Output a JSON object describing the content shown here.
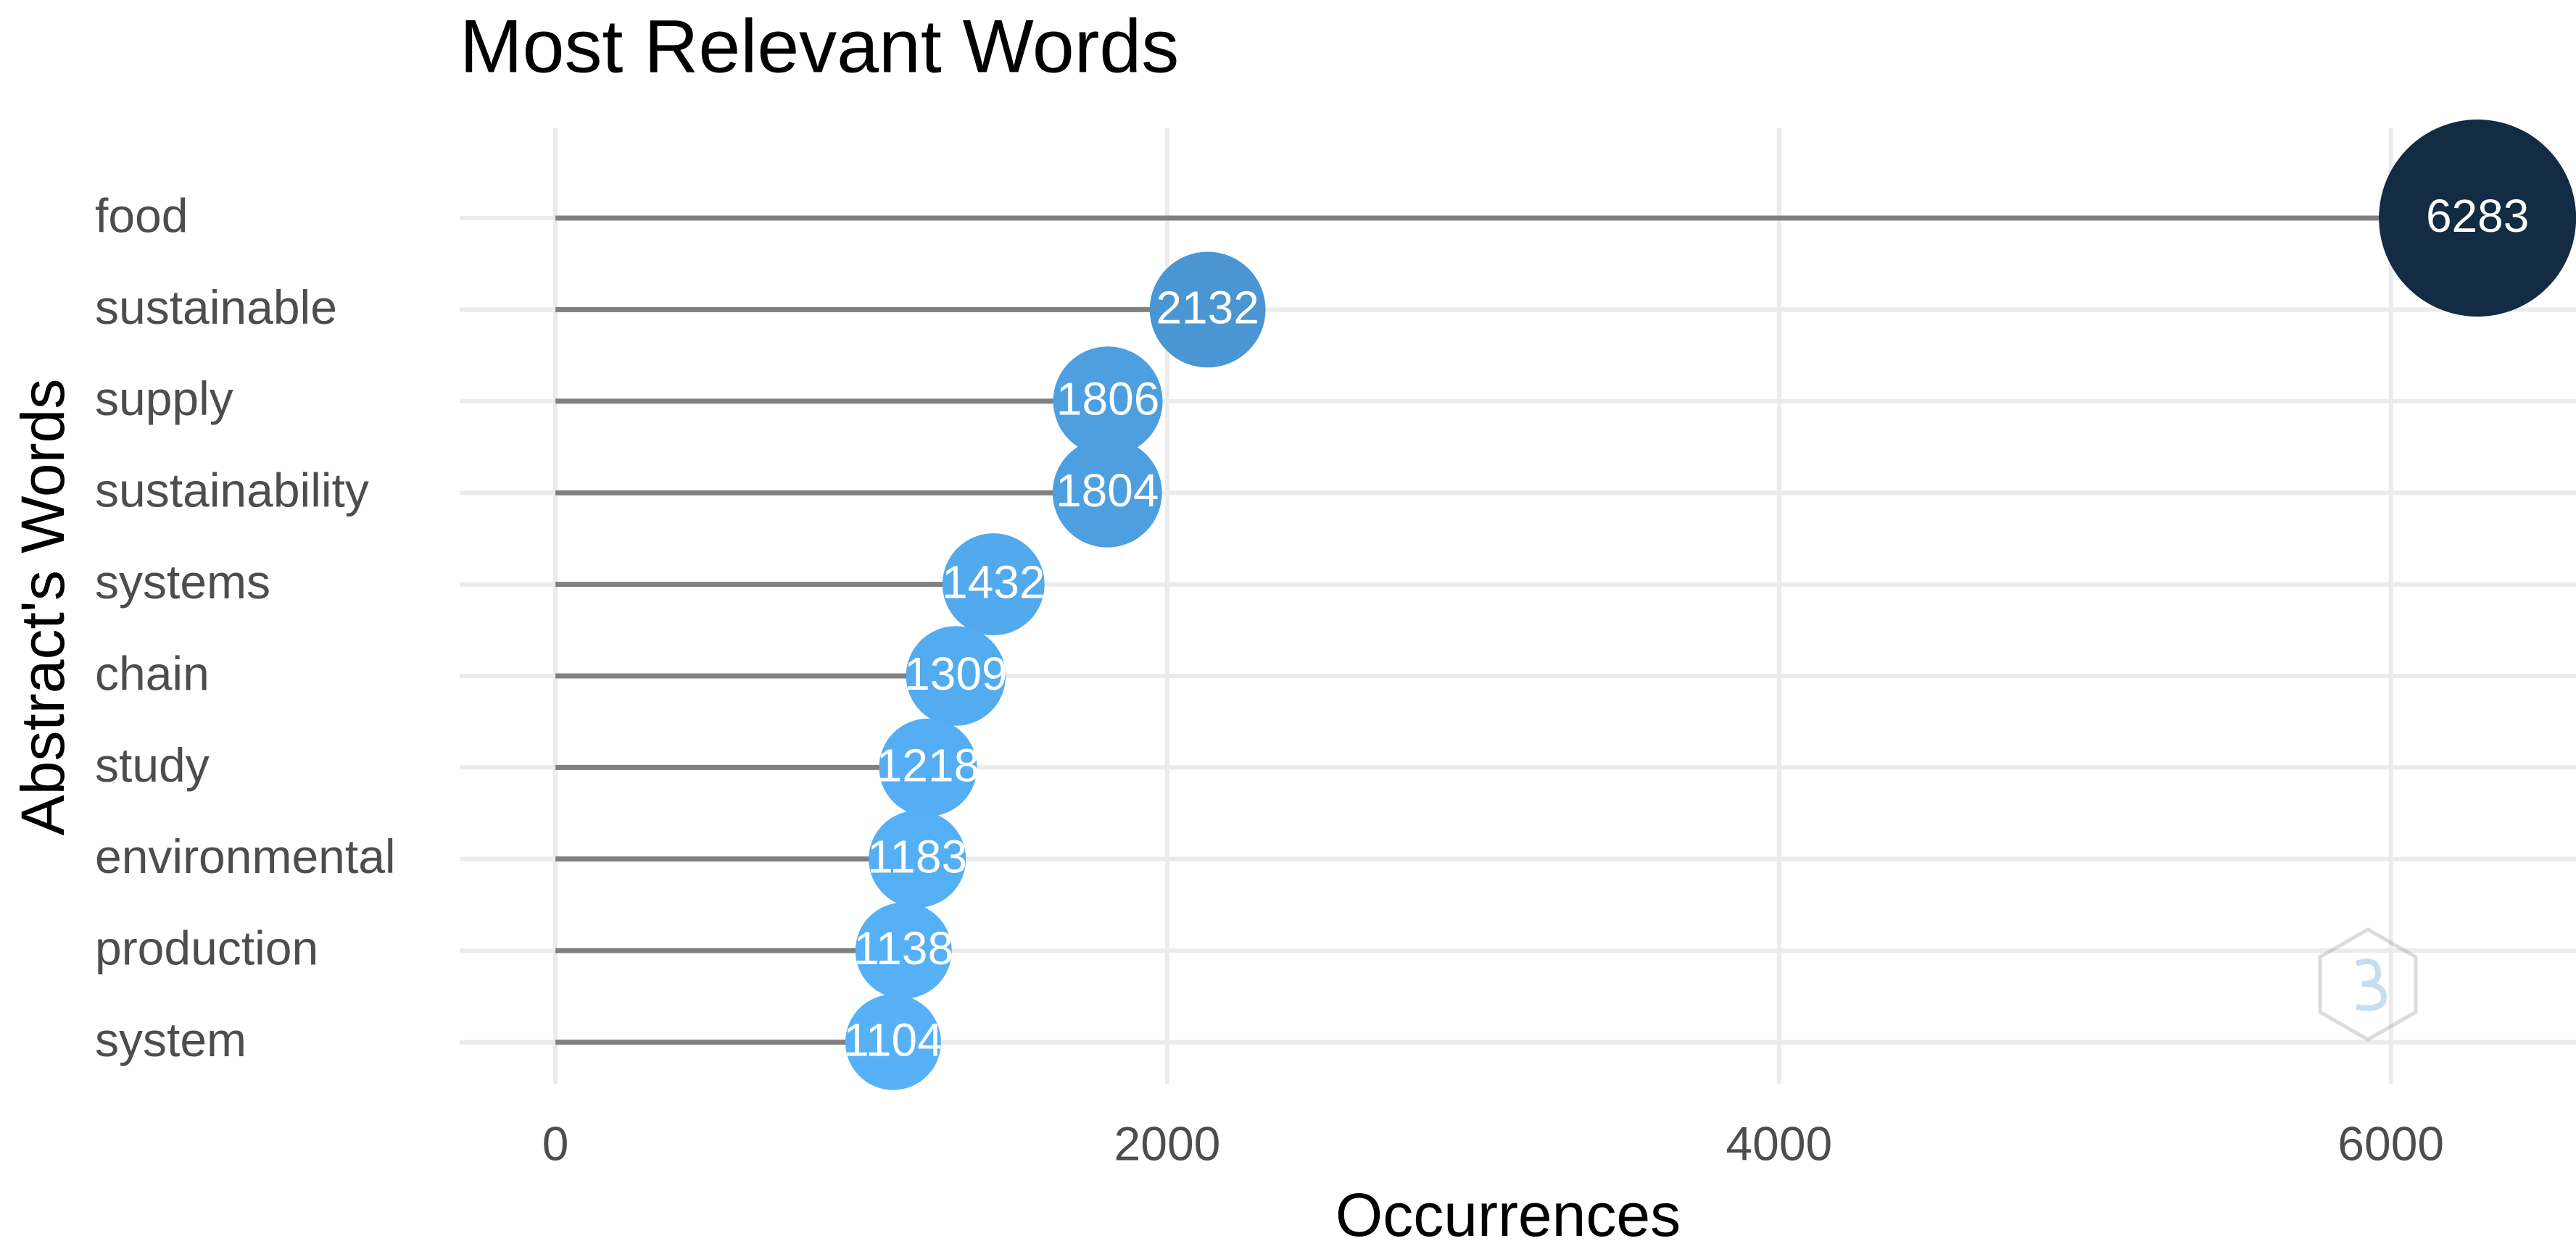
{
  "chart_data": {
    "type": "lollipop",
    "orientation": "horizontal",
    "title": "Most Relevant Words",
    "x_label": "Occurrences",
    "y_label": "Abstract's Words",
    "categories": [
      "food",
      "sustainable",
      "supply",
      "sustainability",
      "systems",
      "chain",
      "study",
      "environmental",
      "production",
      "system"
    ],
    "values": [
      6283,
      2132,
      1806,
      1804,
      1432,
      1309,
      1218,
      1183,
      1138,
      1104
    ],
    "color_low": "#56B1F7",
    "color_high": "#132B43",
    "stem_color": "#808080",
    "xlim": [
      -313,
      6605
    ],
    "xticks": [
      0,
      2000,
      4000,
      6000
    ],
    "grid": true
  }
}
